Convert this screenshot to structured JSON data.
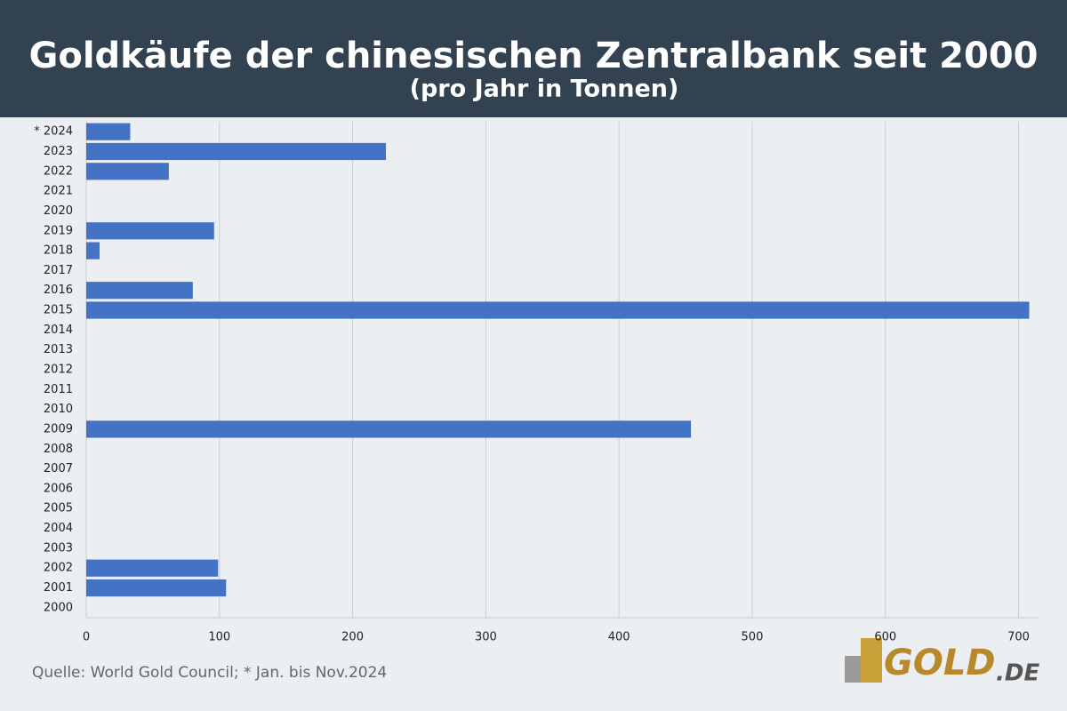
{
  "chart_data": {
    "type": "barh",
    "title": "Goldkäufe der chinesischen Zentralbank seit 2000",
    "subtitle": "(pro Jahr in Tonnen)",
    "categories": [
      "* 2024",
      "2023",
      "2022",
      "2021",
      "2020",
      "2019",
      "2018",
      "2017",
      "2016",
      "2015",
      "2014",
      "2013",
      "2012",
      "2011",
      "2010",
      "2009",
      "2008",
      "2007",
      "2006",
      "2005",
      "2004",
      "2003",
      "2002",
      "2001",
      "2000"
    ],
    "values": [
      33,
      225,
      62,
      0,
      0,
      96,
      10,
      0,
      80,
      708,
      0,
      0,
      0,
      0,
      0,
      454,
      0,
      0,
      0,
      0,
      0,
      0,
      99,
      105,
      0
    ],
    "color": "#4472c4",
    "xlim": [
      0,
      715
    ],
    "xticks": [
      0,
      100,
      200,
      300,
      400,
      500,
      600,
      700
    ],
    "grid": true,
    "source": "Quelle: World Gold Council; * Jan. bis Nov.2024",
    "logo": {
      "main": "GOLD",
      "suffix": ".DE"
    }
  }
}
